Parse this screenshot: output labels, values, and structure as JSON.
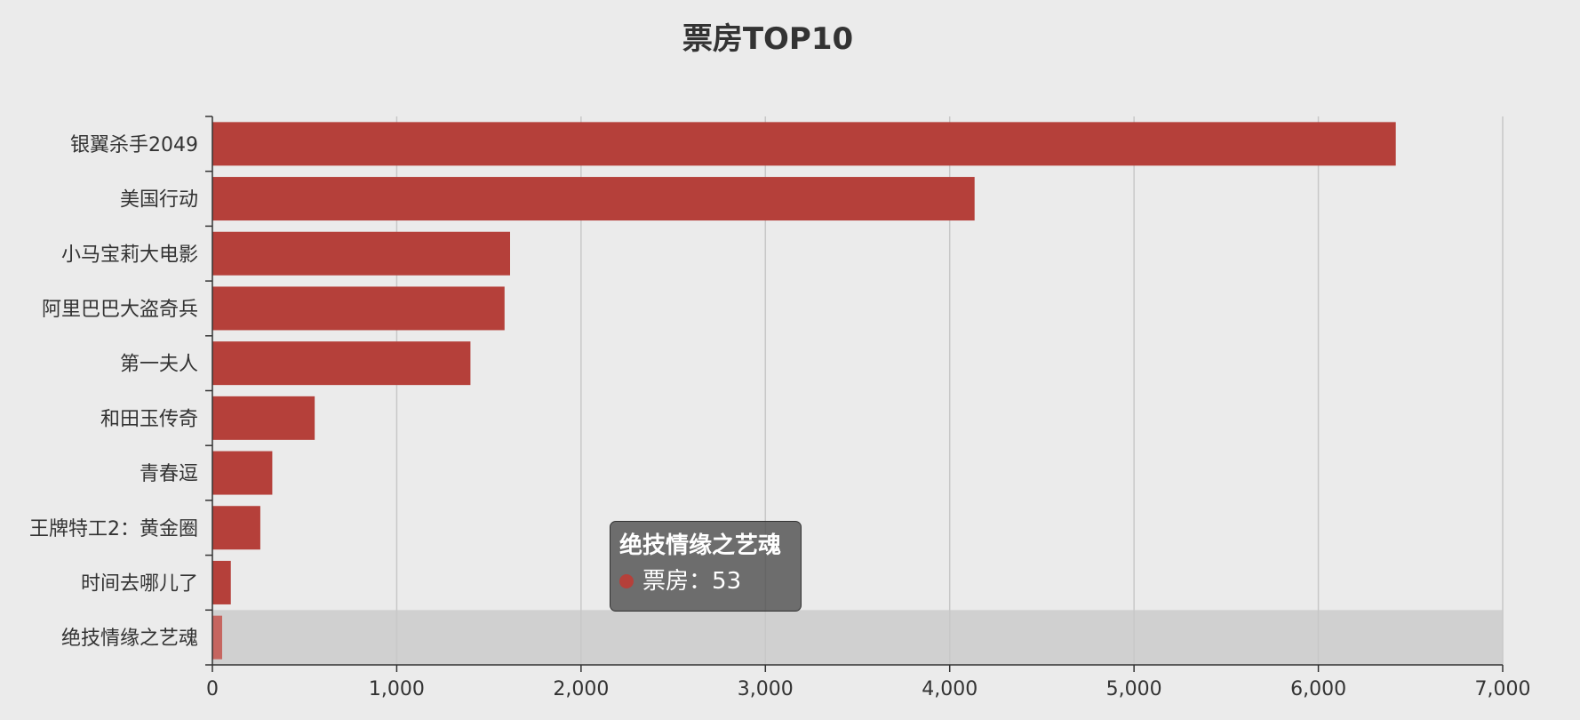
{
  "chart_data": {
    "type": "bar",
    "orientation": "horizontal",
    "title": "票房TOP10",
    "categories": [
      "银翼杀手2049",
      "美国行动",
      "小马宝莉大电影",
      "阿里巴巴大盗奇兵",
      "第一夫人",
      "和田玉传奇",
      "青春逗",
      "王牌特工2：黄金圈",
      "时间去哪儿了",
      "绝技情缘之艺魂"
    ],
    "series": [
      {
        "name": "票房",
        "values": [
          6420,
          4135,
          1615,
          1585,
          1400,
          555,
          325,
          260,
          100,
          53
        ]
      }
    ],
    "xlim": [
      0,
      7000
    ],
    "x_ticks": [
      0,
      1000,
      2000,
      3000,
      4000,
      5000,
      6000,
      7000
    ],
    "x_tick_labels": [
      "0",
      "1,000",
      "2,000",
      "3,000",
      "4,000",
      "5,000",
      "6,000",
      "7,000"
    ],
    "grid": "vertical",
    "legend": "none",
    "highlighted_category": "绝技情缘之艺魂",
    "bar_color": "#b5403a",
    "highlight_bar_color": "#c66560",
    "highlight_band_color": "#d0d0d0",
    "tooltip": {
      "title": "绝技情缘之艺魂",
      "series_label": "票房",
      "separator": "：",
      "value": "53"
    }
  }
}
